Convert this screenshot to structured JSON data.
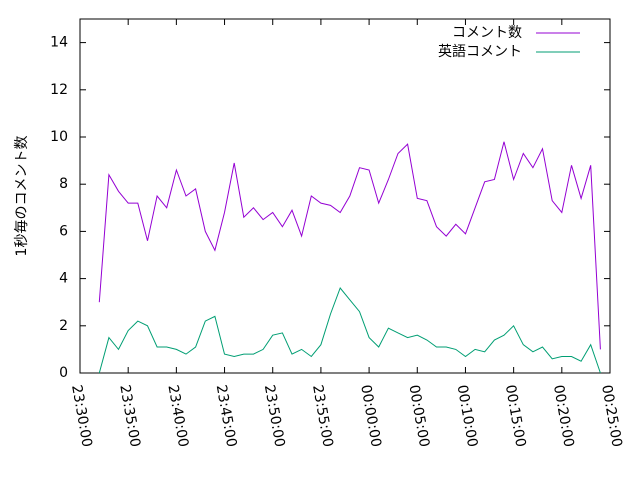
{
  "chart_data": {
    "type": "line",
    "ylabel": "1秒毎のコメント数",
    "x": [
      "23:32:00",
      "23:33:00",
      "23:34:00",
      "23:35:00",
      "23:36:00",
      "23:37:00",
      "23:38:00",
      "23:39:00",
      "23:40:00",
      "23:41:00",
      "23:42:00",
      "23:43:00",
      "23:44:00",
      "23:45:00",
      "23:46:00",
      "23:47:00",
      "23:48:00",
      "23:49:00",
      "23:50:00",
      "23:51:00",
      "23:52:00",
      "23:53:00",
      "23:54:00",
      "23:55:00",
      "23:56:00",
      "23:57:00",
      "23:58:00",
      "23:59:00",
      "00:00:00",
      "00:01:00",
      "00:02:00",
      "00:03:00",
      "00:04:00",
      "00:05:00",
      "00:06:00",
      "00:07:00",
      "00:08:00",
      "00:09:00",
      "00:10:00",
      "00:11:00",
      "00:12:00",
      "00:13:00",
      "00:14:00",
      "00:15:00",
      "00:16:00",
      "00:17:00",
      "00:18:00",
      "00:19:00",
      "00:20:00",
      "00:21:00",
      "00:22:00",
      "00:23:00",
      "00:24:00"
    ],
    "series": [
      {
        "name": "コメント数",
        "color": "#9400d3",
        "values": [
          3.0,
          8.4,
          7.7,
          7.2,
          7.2,
          5.6,
          7.5,
          7.0,
          8.6,
          7.5,
          7.8,
          6.0,
          5.2,
          6.8,
          8.9,
          6.6,
          7.0,
          6.5,
          6.8,
          6.2,
          6.9,
          5.8,
          7.5,
          7.2,
          7.1,
          6.8,
          7.5,
          8.7,
          8.6,
          7.2,
          8.2,
          9.3,
          9.7,
          7.4,
          7.3,
          6.2,
          5.8,
          6.3,
          5.9,
          7.0,
          8.1,
          8.2,
          9.8,
          8.2,
          9.3,
          8.7,
          9.5,
          7.3,
          6.8,
          8.8,
          7.4,
          8.8,
          1.0
        ]
      },
      {
        "name": "英語コメント",
        "color": "#009e73",
        "values": [
          0.0,
          1.5,
          1.0,
          1.8,
          2.2,
          2.0,
          1.1,
          1.1,
          1.0,
          0.8,
          1.1,
          2.2,
          2.4,
          0.8,
          0.7,
          0.8,
          0.8,
          1.0,
          1.6,
          1.7,
          0.8,
          1.0,
          0.7,
          1.2,
          2.5,
          3.6,
          3.1,
          2.6,
          1.5,
          1.1,
          1.9,
          1.7,
          1.5,
          1.6,
          1.4,
          1.1,
          1.1,
          1.0,
          0.7,
          1.0,
          0.9,
          1.4,
          1.6,
          2.0,
          1.2,
          0.9,
          1.1,
          0.6,
          0.7,
          0.7,
          0.5,
          1.2,
          0.0
        ]
      }
    ],
    "xlim": [
      "23:30:00",
      "00:25:00"
    ],
    "xticks": [
      "23:30:00",
      "23:35:00",
      "23:40:00",
      "23:45:00",
      "23:50:00",
      "23:55:00",
      "00:00:00",
      "00:05:00",
      "00:10:00",
      "00:15:00",
      "00:20:00",
      "00:25:00"
    ],
    "ylim": [
      0,
      15
    ],
    "yticks": [
      0,
      2,
      4,
      6,
      8,
      10,
      12,
      14
    ],
    "legend": "top-right"
  }
}
